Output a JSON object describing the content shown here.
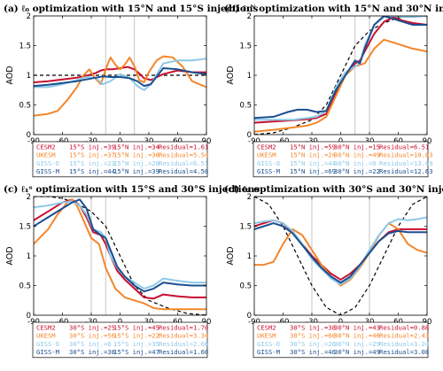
{
  "chart_data": [
    {
      "type": "line",
      "id": "a",
      "title": "(a) ℓ₀ optimization with 15°N and 15°S injections",
      "ylabel": "AOD",
      "xlim": [
        -90,
        90
      ],
      "ylim": [
        0,
        2
      ],
      "xticks": [
        -90,
        -60,
        -30,
        0,
        30,
        60,
        90
      ],
      "yticks": [
        0,
        0.5,
        1,
        1.5,
        2
      ],
      "injection_lats": [
        -15,
        15
      ],
      "target": {
        "name": "target",
        "x": [
          -90,
          90
        ],
        "y": [
          1.0,
          1.0
        ]
      },
      "series": [
        {
          "key": "cesm2",
          "x": [
            -90,
            -75,
            -60,
            -45,
            -33,
            -25,
            -20,
            -15,
            -8,
            0,
            8,
            15,
            20,
            25,
            32,
            45,
            60,
            75,
            90
          ],
          "y": [
            0.88,
            0.9,
            0.93,
            0.96,
            1.0,
            1.04,
            1.08,
            1.1,
            1.1,
            1.12,
            1.14,
            1.1,
            1.03,
            0.95,
            0.92,
            1.02,
            1.08,
            1.05,
            1.05
          ]
        },
        {
          "key": "ukesm",
          "x": [
            -90,
            -75,
            -65,
            -55,
            -45,
            -38,
            -32,
            -26,
            -20,
            -15,
            -10,
            -5,
            0,
            5,
            10,
            15,
            20,
            25,
            30,
            38,
            45,
            55,
            65,
            75,
            90
          ],
          "y": [
            0.32,
            0.35,
            0.4,
            0.58,
            0.8,
            1.0,
            1.1,
            0.95,
            0.85,
            1.1,
            1.3,
            1.18,
            1.1,
            1.18,
            1.3,
            1.15,
            0.92,
            0.88,
            1.05,
            1.25,
            1.32,
            1.3,
            1.15,
            0.9,
            0.8
          ]
        },
        {
          "key": "giss_o",
          "x": [
            -90,
            -75,
            -60,
            -45,
            -35,
            -25,
            -18,
            -10,
            0,
            10,
            18,
            25,
            32,
            45,
            60,
            75,
            90
          ],
          "y": [
            0.8,
            0.8,
            0.85,
            0.92,
            0.97,
            0.95,
            0.85,
            0.9,
            1.02,
            0.95,
            0.82,
            0.75,
            0.85,
            1.2,
            1.25,
            1.25,
            1.28
          ]
        },
        {
          "key": "giss_m",
          "x": [
            -90,
            -75,
            -60,
            -45,
            -35,
            -25,
            -18,
            -10,
            0,
            10,
            18,
            25,
            32,
            45,
            60,
            75,
            90
          ],
          "y": [
            0.82,
            0.84,
            0.87,
            0.9,
            0.93,
            0.96,
            0.98,
            0.97,
            0.97,
            0.95,
            0.9,
            0.82,
            0.85,
            1.12,
            1.1,
            1.05,
            1.02
          ]
        }
      ],
      "legend": [
        {
          "key": "cesm2",
          "model": "CESM2",
          "inj1": "15°S inj.=39",
          "inj2": "15°N inj.=34",
          "residual": "Residual=1.61"
        },
        {
          "key": "ukesm",
          "model": "UKESM",
          "inj1": "15°S inj.=37",
          "inj2": "15°N inj.=36",
          "residual": "Residual=5.54"
        },
        {
          "key": "giss_o",
          "model": "GISS-O",
          "inj1": "15°S inj.=23",
          "inj2": "15°N inj.=20",
          "residual": "Residual=6.51"
        },
        {
          "key": "giss_m",
          "model": "GISS-M",
          "inj1": "15°S inj.=44",
          "inj2": "15°N inj.=39",
          "residual": "Residual=4.50"
        }
      ]
    },
    {
      "type": "line",
      "id": "b",
      "title": "(b) ℓ₁ᴺ optimization with 15°N and 30°N injections",
      "ylabel": "AOD",
      "xlim": [
        -90,
        90
      ],
      "ylim": [
        0,
        2
      ],
      "xticks": [
        -90,
        -60,
        -30,
        0,
        30,
        60,
        90
      ],
      "yticks": [
        0,
        0.5,
        1,
        1.5,
        2
      ],
      "injection_lats": [
        15,
        30
      ],
      "target": {
        "name": "target",
        "x": [
          -90,
          -70,
          -50,
          -30,
          -15,
          0,
          15,
          30,
          45,
          60,
          75,
          90
        ],
        "y": [
          0.0,
          0.03,
          0.12,
          0.25,
          0.5,
          1.0,
          1.5,
          1.75,
          1.88,
          1.97,
          2.0,
          2.0
        ]
      },
      "series": [
        {
          "key": "cesm2",
          "x": [
            -90,
            -70,
            -50,
            -35,
            -25,
            -15,
            -5,
            5,
            15,
            20,
            25,
            35,
            45,
            55,
            65,
            75,
            90
          ],
          "y": [
            0.2,
            0.22,
            0.24,
            0.26,
            0.28,
            0.35,
            0.7,
            1.0,
            1.2,
            1.25,
            1.4,
            1.7,
            1.9,
            1.98,
            1.92,
            1.88,
            1.85
          ]
        },
        {
          "key": "ukesm",
          "x": [
            -90,
            -70,
            -50,
            -35,
            -25,
            -15,
            -5,
            5,
            15,
            25,
            35,
            45,
            55,
            65,
            75,
            90
          ],
          "y": [
            0.05,
            0.08,
            0.12,
            0.15,
            0.2,
            0.3,
            0.65,
            1.0,
            1.15,
            1.2,
            1.45,
            1.6,
            1.55,
            1.5,
            1.45,
            1.4
          ]
        },
        {
          "key": "giss_o",
          "x": [
            -90,
            -70,
            -50,
            -35,
            -25,
            -15,
            -5,
            5,
            15,
            20,
            25,
            35,
            45,
            55,
            65,
            75,
            90
          ],
          "y": [
            0.25,
            0.25,
            0.25,
            0.28,
            0.3,
            0.4,
            0.8,
            1.05,
            1.15,
            1.2,
            1.5,
            1.85,
            1.98,
            2.0,
            1.98,
            1.98,
            2.0
          ]
        },
        {
          "key": "giss_m",
          "x": [
            -90,
            -70,
            -55,
            -45,
            -35,
            -25,
            -15,
            -5,
            5,
            15,
            20,
            25,
            35,
            45,
            55,
            65,
            75,
            90
          ],
          "y": [
            0.28,
            0.3,
            0.38,
            0.42,
            0.42,
            0.38,
            0.4,
            0.75,
            1.0,
            1.25,
            1.2,
            1.45,
            1.85,
            2.0,
            1.95,
            1.9,
            1.85,
            1.85
          ]
        }
      ],
      "legend": [
        {
          "key": "cesm2",
          "model": "CESM2",
          "inj1": "15°N inj.=59",
          "inj2": "30°N inj.=15",
          "residual": "Residual=6.51"
        },
        {
          "key": "ukesm",
          "model": "UKESM",
          "inj1": "15°N inj.=24",
          "inj2": "30°N inj.=49",
          "residual": "Residual=10.83"
        },
        {
          "key": "giss_o",
          "model": "GISS-O",
          "inj1": "15°N inj.=44",
          "inj2": "30°N inj.=0",
          "residual": "Residual=13.69"
        },
        {
          "key": "giss_m",
          "model": "GISS-M",
          "inj1": "15°N inj.=69",
          "inj2": "30°N inj.=22",
          "residual": "Residual=12.63"
        }
      ]
    },
    {
      "type": "line",
      "id": "c",
      "title": "(c) ℓ₁ˢ optimization with 15°S and 30°S injections",
      "ylabel": "AOD",
      "xlim": [
        -90,
        90
      ],
      "ylim": [
        0,
        2
      ],
      "xticks": [
        -90,
        -60,
        -30,
        0,
        30,
        60,
        90
      ],
      "yticks": [
        0,
        0.5,
        1,
        1.5,
        2
      ],
      "injection_lats": [
        -30,
        -15
      ],
      "target": {
        "name": "target",
        "x": [
          -90,
          -75,
          -60,
          -45,
          -30,
          -15,
          0,
          15,
          30,
          50,
          70,
          90
        ],
        "y": [
          2.0,
          2.0,
          1.97,
          1.88,
          1.75,
          1.5,
          1.0,
          0.5,
          0.25,
          0.12,
          0.03,
          0.0
        ]
      },
      "series": [
        {
          "key": "cesm2",
          "x": [
            -90,
            -75,
            -60,
            -50,
            -42,
            -35,
            -28,
            -20,
            -15,
            -10,
            -3,
            5,
            15,
            25,
            35,
            45,
            60,
            75,
            90
          ],
          "y": [
            1.6,
            1.75,
            1.9,
            1.95,
            1.85,
            1.65,
            1.4,
            1.35,
            1.2,
            1.0,
            0.75,
            0.6,
            0.45,
            0.3,
            0.28,
            0.35,
            0.32,
            0.3,
            0.3
          ]
        },
        {
          "key": "ukesm",
          "x": [
            -90,
            -75,
            -65,
            -55,
            -50,
            -45,
            -38,
            -30,
            -22,
            -15,
            -5,
            5,
            15,
            25,
            35,
            45,
            60,
            75,
            90
          ],
          "y": [
            1.2,
            1.45,
            1.7,
            1.9,
            1.95,
            1.85,
            1.6,
            1.3,
            1.2,
            0.8,
            0.45,
            0.3,
            0.25,
            0.2,
            0.12,
            0.1,
            0.1,
            0.1,
            0.1
          ]
        },
        {
          "key": "giss_o",
          "x": [
            -90,
            -75,
            -60,
            -50,
            -42,
            -35,
            -28,
            -20,
            -15,
            -10,
            -3,
            5,
            15,
            25,
            35,
            45,
            60,
            75,
            90
          ],
          "y": [
            1.82,
            1.85,
            1.9,
            1.92,
            1.85,
            1.7,
            1.45,
            1.4,
            1.3,
            1.0,
            0.8,
            0.65,
            0.55,
            0.45,
            0.5,
            0.62,
            0.58,
            0.55,
            0.55
          ]
        },
        {
          "key": "giss_m",
          "x": [
            -90,
            -75,
            -60,
            -50,
            -42,
            -35,
            -28,
            -20,
            -15,
            -10,
            -3,
            5,
            15,
            25,
            35,
            45,
            60,
            75,
            90
          ],
          "y": [
            1.5,
            1.65,
            1.8,
            1.9,
            1.95,
            1.8,
            1.45,
            1.35,
            1.3,
            1.1,
            0.82,
            0.65,
            0.5,
            0.4,
            0.45,
            0.55,
            0.52,
            0.5,
            0.5
          ]
        }
      ],
      "legend": [
        {
          "key": "cesm2",
          "model": "CESM2",
          "inj1": "30°S inj.=25",
          "inj2": "15°S inj.=45",
          "residual": "Residual=1.70"
        },
        {
          "key": "ukesm",
          "model": "UKESM",
          "inj1": "30°S inj.=56",
          "inj2": "15°S inj.=22",
          "residual": "Residual=3.34"
        },
        {
          "key": "giss_o",
          "model": "GISS-O",
          "inj1": "30°S inj.=6",
          "inj2": "15°S inj.=35",
          "residual": "Residual=2.66"
        },
        {
          "key": "giss_m",
          "model": "GISS-M",
          "inj1": "30°S inj.=38",
          "inj2": "15°S inj.=47",
          "residual": "Residual=1.60"
        }
      ]
    },
    {
      "type": "line",
      "id": "d",
      "title": "(d) ℓ₂ optimization with 30°S and 30°N injections",
      "ylabel": "AOD",
      "xlim": [
        -90,
        90
      ],
      "ylim": [
        0,
        2
      ],
      "xticks": [
        -90,
        -60,
        -30,
        0,
        30,
        60,
        90
      ],
      "yticks": [
        0,
        0.5,
        1,
        1.5,
        2
      ],
      "injection_lats": [
        -30,
        30
      ],
      "target": {
        "name": "target",
        "x": [
          -90,
          -75,
          -60,
          -45,
          -30,
          -15,
          0,
          15,
          30,
          45,
          60,
          75,
          90
        ],
        "y": [
          2.0,
          1.87,
          1.5,
          1.0,
          0.5,
          0.13,
          0.0,
          0.13,
          0.5,
          1.0,
          1.5,
          1.87,
          2.0
        ]
      },
      "series": [
        {
          "key": "cesm2",
          "x": [
            -90,
            -80,
            -70,
            -60,
            -50,
            -40,
            -30,
            -20,
            -10,
            0,
            10,
            20,
            30,
            40,
            50,
            60,
            70,
            80,
            90
          ],
          "y": [
            1.5,
            1.55,
            1.6,
            1.55,
            1.4,
            1.2,
            1.0,
            0.85,
            0.7,
            0.6,
            0.7,
            0.85,
            1.05,
            1.25,
            1.4,
            1.45,
            1.45,
            1.45,
            1.45
          ]
        },
        {
          "key": "ukesm",
          "x": [
            -90,
            -80,
            -70,
            -60,
            -50,
            -40,
            -30,
            -20,
            -10,
            0,
            10,
            20,
            30,
            40,
            50,
            60,
            70,
            80,
            90
          ],
          "y": [
            0.85,
            0.85,
            0.9,
            1.2,
            1.45,
            1.35,
            1.1,
            0.85,
            0.65,
            0.5,
            0.6,
            0.8,
            1.05,
            1.35,
            1.55,
            1.45,
            1.2,
            1.1,
            1.05
          ]
        },
        {
          "key": "giss_o",
          "x": [
            -90,
            -80,
            -70,
            -60,
            -50,
            -40,
            -30,
            -20,
            -10,
            0,
            10,
            20,
            30,
            40,
            50,
            60,
            70,
            80,
            90
          ],
          "y": [
            1.55,
            1.58,
            1.6,
            1.55,
            1.42,
            1.2,
            0.95,
            0.78,
            0.62,
            0.52,
            0.62,
            0.82,
            1.1,
            1.35,
            1.55,
            1.62,
            1.6,
            1.62,
            1.65
          ]
        },
        {
          "key": "giss_m",
          "x": [
            -90,
            -80,
            -70,
            -60,
            -50,
            -40,
            -30,
            -20,
            -10,
            0,
            10,
            20,
            30,
            40,
            50,
            60,
            70,
            80,
            90
          ],
          "y": [
            1.45,
            1.5,
            1.55,
            1.5,
            1.38,
            1.18,
            0.98,
            0.8,
            0.65,
            0.55,
            0.65,
            0.85,
            1.05,
            1.25,
            1.38,
            1.42,
            1.4,
            1.4,
            1.4
          ]
        }
      ],
      "legend": [
        {
          "key": "cesm2",
          "model": "CESM2",
          "inj1": "30°S inj.=38",
          "inj2": "30°N inj.=43",
          "residual": "Residual=0.88"
        },
        {
          "key": "ukesm",
          "model": "UKESM",
          "inj1": "30°S inj.=60",
          "inj2": "30°N inj.=46",
          "residual": "Residual=2.43"
        },
        {
          "key": "giss_o",
          "model": "GISS-O",
          "inj1": "30°S inj.=26",
          "inj2": "30°N inj.=29",
          "residual": "Residual=3.24"
        },
        {
          "key": "giss_m",
          "model": "GISS-M",
          "inj1": "30°S inj.=46",
          "inj2": "30°N inj.=49",
          "residual": "Residual=3.08"
        }
      ]
    }
  ],
  "colors": {
    "cesm2": "#c8102e",
    "ukesm": "#f4862b",
    "giss_o": "#8ec9e8",
    "giss_m": "#1b4f8f",
    "target": "#000000",
    "injection_line": "#b8b8b8"
  }
}
